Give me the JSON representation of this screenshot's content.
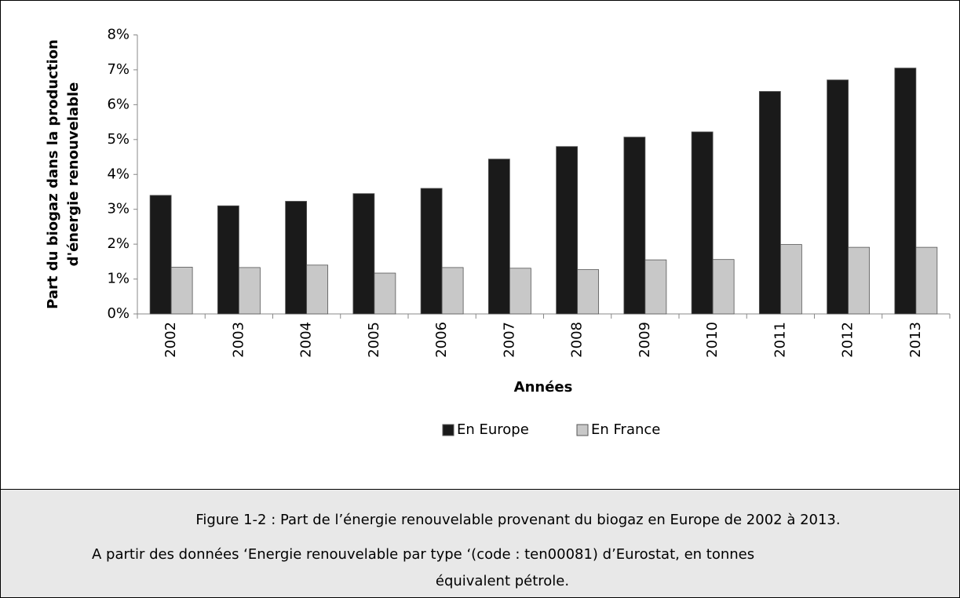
{
  "chart_data": {
    "type": "bar",
    "y_label": [
      "Part du biogaz dans la production",
      "d'énergie renouvelable"
    ],
    "x_label": "Années",
    "categories": [
      "2002",
      "2003",
      "2004",
      "2005",
      "2006",
      "2007",
      "2008",
      "2009",
      "2010",
      "2011",
      "2012",
      "2013"
    ],
    "series": [
      {
        "name": "En Europe",
        "color": "#1a1a1a",
        "values": [
          3.4,
          3.1,
          3.23,
          3.45,
          3.6,
          4.44,
          4.8,
          5.07,
          5.22,
          6.38,
          6.71,
          7.05
        ]
      },
      {
        "name": "En France",
        "color": "#c8c8c8",
        "values": [
          1.34,
          1.33,
          1.4,
          1.17,
          1.33,
          1.31,
          1.27,
          1.55,
          1.56,
          1.99,
          1.91,
          1.91
        ]
      }
    ],
    "ylim": [
      0,
      8
    ],
    "yticks": [
      {
        "value": 0,
        "label": "0%"
      },
      {
        "value": 1,
        "label": "1%"
      },
      {
        "value": 2,
        "label": "2%"
      },
      {
        "value": 3,
        "label": "3%"
      },
      {
        "value": 4,
        "label": "4%"
      },
      {
        "value": 5,
        "label": "5%"
      },
      {
        "value": 6,
        "label": "6%"
      },
      {
        "value": 7,
        "label": "7%"
      },
      {
        "value": 8,
        "label": "8%"
      }
    ],
    "grid": false,
    "legend": "bottom"
  },
  "caption": {
    "lines": [
      "Figure 1-2 : Part de l’énergie renouvelable provenant du biogaz en Europe de 2002 à 2013.",
      "A partir des données ‘Energie renouvelable par type ‘(code : ten00081) d’Eurostat, en tonnes",
      "équivalent pétrole."
    ]
  }
}
